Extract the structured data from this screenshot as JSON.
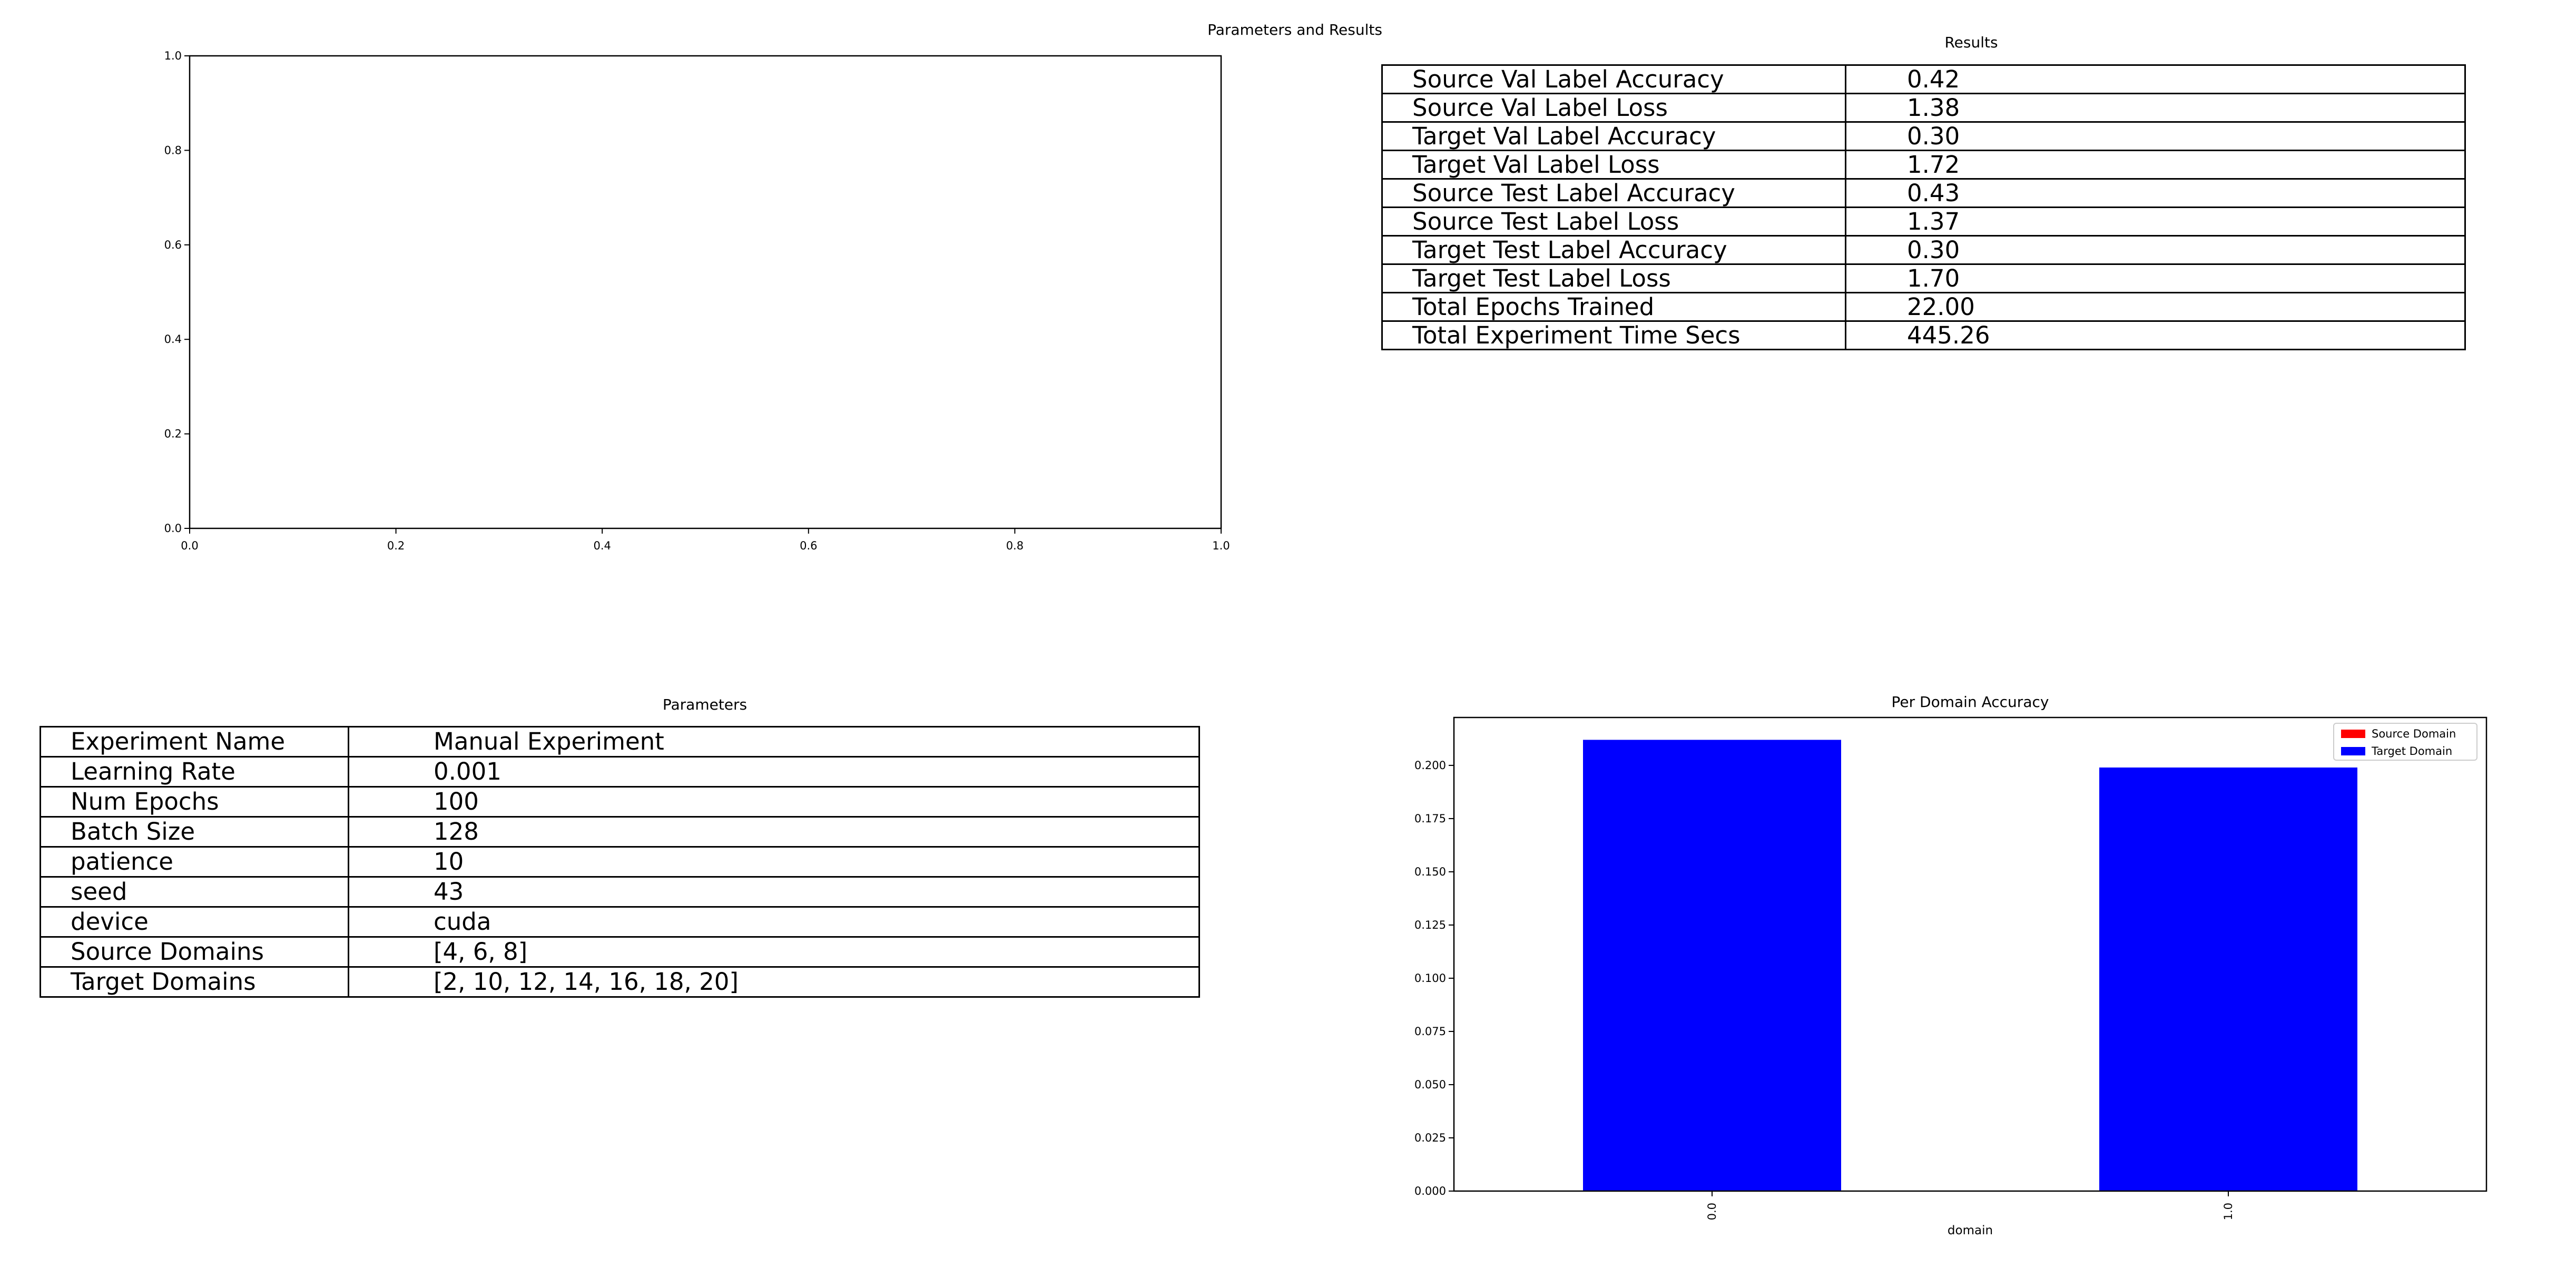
{
  "figure": {
    "suptitle": "Parameters and Results"
  },
  "results": {
    "title": "Results",
    "rows": [
      {
        "label": "Source Val Label Accuracy",
        "value": "0.42"
      },
      {
        "label": "Source Val Label Loss",
        "value": "1.38"
      },
      {
        "label": "Target Val Label Accuracy",
        "value": "0.30"
      },
      {
        "label": "Target Val Label Loss",
        "value": "1.72"
      },
      {
        "label": "Source Test Label Accuracy",
        "value": "0.43"
      },
      {
        "label": "Source Test Label Loss",
        "value": "1.37"
      },
      {
        "label": "Target Test Label Accuracy",
        "value": "0.30"
      },
      {
        "label": "Target Test Label Loss",
        "value": "1.70"
      },
      {
        "label": "Total Epochs Trained",
        "value": "22.00"
      },
      {
        "label": "Total Experiment Time Secs",
        "value": "445.26"
      }
    ]
  },
  "parameters": {
    "title": "Parameters",
    "rows": [
      {
        "label": "Experiment Name",
        "value": "Manual Experiment"
      },
      {
        "label": "Learning Rate",
        "value": "0.001"
      },
      {
        "label": "Num Epochs",
        "value": "100"
      },
      {
        "label": "Batch Size",
        "value": "128"
      },
      {
        "label": "patience",
        "value": "10"
      },
      {
        "label": "seed",
        "value": "43"
      },
      {
        "label": "device",
        "value": "cuda"
      },
      {
        "label": "Source Domains",
        "value": "[4, 6, 8]"
      },
      {
        "label": "Target Domains",
        "value": "[2, 10, 12, 14, 16, 18, 20]"
      }
    ]
  },
  "chart_data": [
    {
      "type": "line",
      "title": "",
      "xlabel": "",
      "ylabel": "",
      "xlim": [
        0,
        1
      ],
      "ylim": [
        0,
        1
      ],
      "xticks": [
        "0.0",
        "0.2",
        "0.4",
        "0.6",
        "0.8",
        "1.0"
      ],
      "yticks": [
        "0.0",
        "0.2",
        "0.4",
        "0.6",
        "0.8",
        "1.0"
      ],
      "series": []
    },
    {
      "type": "bar",
      "title": "Per Domain Accuracy",
      "xlabel": "domain",
      "ylabel": "",
      "categories": [
        "0.0",
        "1.0"
      ],
      "ylim": [
        0,
        0.2225
      ],
      "yticks": [
        "0.000",
        "0.025",
        "0.050",
        "0.075",
        "0.100",
        "0.125",
        "0.150",
        "0.175",
        "0.200"
      ],
      "legend_position": "top-right",
      "series": [
        {
          "name": "Source Domain",
          "color": "#ff0000",
          "values": [
            0,
            0
          ]
        },
        {
          "name": "Target Domain",
          "color": "#0000ff",
          "values": [
            0.212,
            0.199
          ]
        }
      ],
      "grid": false
    }
  ]
}
